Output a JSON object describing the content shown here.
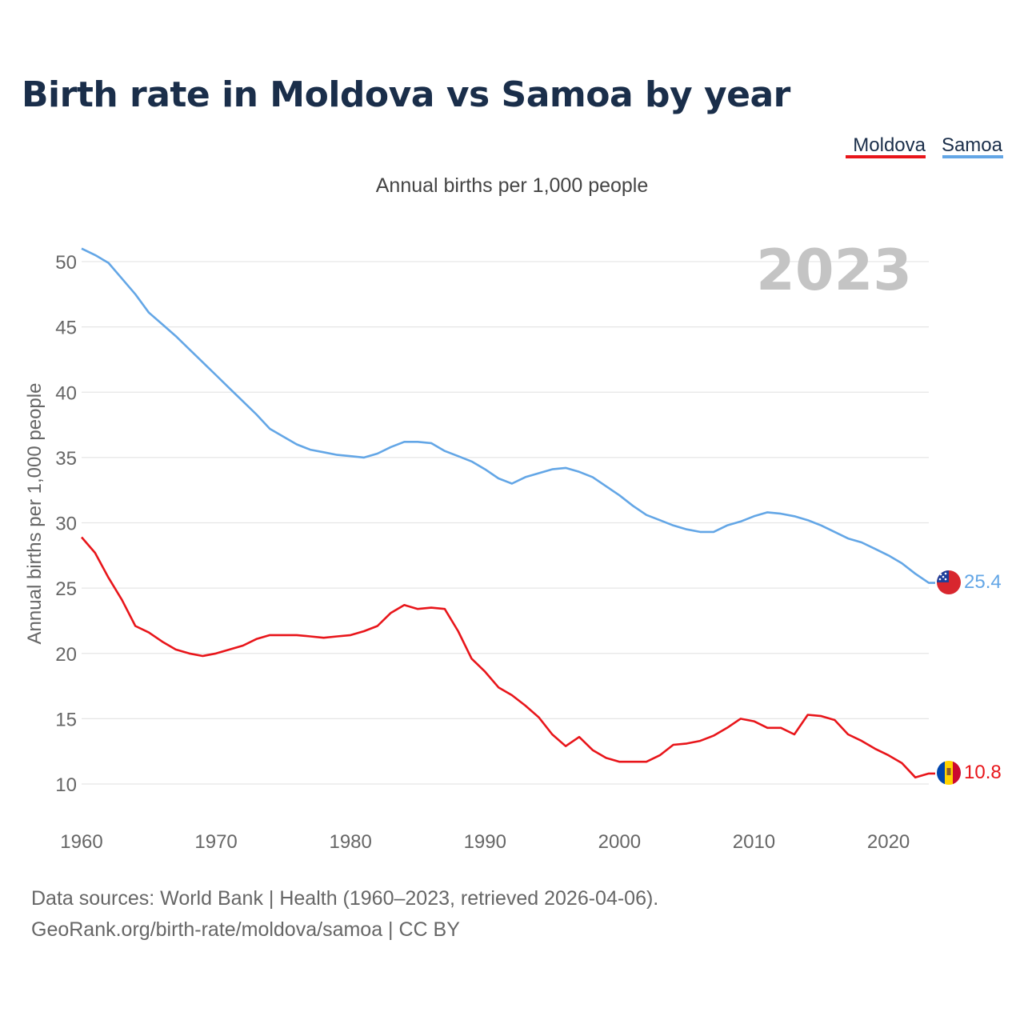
{
  "title": "Birth rate in Moldova vs Samoa by year",
  "legend": [
    {
      "name": "Moldova",
      "color": "#e8151a"
    },
    {
      "name": "Samoa",
      "color": "#63a6e6"
    }
  ],
  "source": {
    "line1": "Data sources: World Bank | Health (1960–2023, retrieved 2026-04-06).",
    "line2": "GeoRank.org/birth-rate/moldova/samoa | CC BY"
  },
  "chart_data": {
    "type": "line",
    "title": "Birth rate in Moldova vs Samoa by year",
    "subtitle": "Annual births per 1,000 people",
    "xlabel": "",
    "ylabel": "Annual births per 1,000 people",
    "year_label": "2023",
    "xlim": [
      1960,
      2023
    ],
    "ylim": [
      10,
      50
    ],
    "x_ticks": [
      1960,
      1970,
      1980,
      1990,
      2000,
      2010,
      2020
    ],
    "y_ticks": [
      10,
      15,
      20,
      25,
      30,
      35,
      40,
      45,
      50
    ],
    "grid": true,
    "x": [
      1960,
      1961,
      1962,
      1963,
      1964,
      1965,
      1966,
      1967,
      1968,
      1969,
      1970,
      1971,
      1972,
      1973,
      1974,
      1975,
      1976,
      1977,
      1978,
      1979,
      1980,
      1981,
      1982,
      1983,
      1984,
      1985,
      1986,
      1987,
      1988,
      1989,
      1990,
      1991,
      1992,
      1993,
      1994,
      1995,
      1996,
      1997,
      1998,
      1999,
      2000,
      2001,
      2002,
      2003,
      2004,
      2005,
      2006,
      2007,
      2008,
      2009,
      2010,
      2011,
      2012,
      2013,
      2014,
      2015,
      2016,
      2017,
      2018,
      2019,
      2020,
      2021,
      2022,
      2023
    ],
    "series": [
      {
        "name": "Moldova",
        "color": "#e8151a",
        "end_label": "10.8",
        "values": [
          28.9,
          27.7,
          25.8,
          24.1,
          22.1,
          21.6,
          20.9,
          20.3,
          20.0,
          19.8,
          20.0,
          20.3,
          20.6,
          21.1,
          21.4,
          21.4,
          21.4,
          21.3,
          21.2,
          21.3,
          21.4,
          21.7,
          22.1,
          23.1,
          23.7,
          23.4,
          23.5,
          23.4,
          21.7,
          19.6,
          18.6,
          17.4,
          16.8,
          16.0,
          15.1,
          13.8,
          12.9,
          13.6,
          12.6,
          12.0,
          11.7,
          11.7,
          11.7,
          12.2,
          13.0,
          13.1,
          13.3,
          13.7,
          14.3,
          15.0,
          14.8,
          14.3,
          14.3,
          13.8,
          15.3,
          15.2,
          14.9,
          13.8,
          13.3,
          12.7,
          12.2,
          11.6,
          10.5,
          10.8
        ]
      },
      {
        "name": "Samoa",
        "color": "#63a6e6",
        "end_label": "25.4",
        "values": [
          51.0,
          50.5,
          49.9,
          48.7,
          47.5,
          46.1,
          45.2,
          44.3,
          43.3,
          42.3,
          41.3,
          40.3,
          39.3,
          38.3,
          37.2,
          36.6,
          36.0,
          35.6,
          35.4,
          35.2,
          35.1,
          35.0,
          35.3,
          35.8,
          36.2,
          36.2,
          36.1,
          35.5,
          35.1,
          34.7,
          34.1,
          33.4,
          33.0,
          33.5,
          33.8,
          34.1,
          34.2,
          33.9,
          33.5,
          32.8,
          32.1,
          31.3,
          30.6,
          30.2,
          29.8,
          29.5,
          29.3,
          29.3,
          29.8,
          30.1,
          30.5,
          30.8,
          30.7,
          30.5,
          30.2,
          29.8,
          29.3,
          28.8,
          28.5,
          28.0,
          27.5,
          26.9,
          26.1,
          25.4
        ]
      }
    ]
  }
}
